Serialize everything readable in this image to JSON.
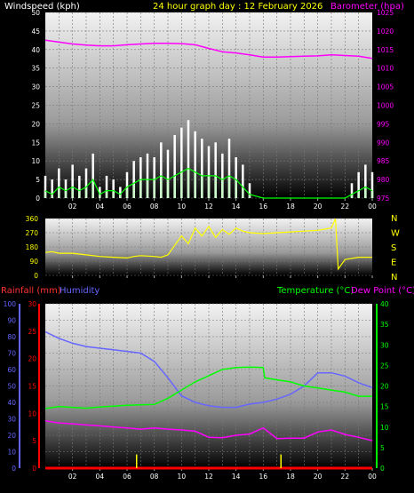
{
  "header": {
    "windspeed_label": "Windspeed (kph)",
    "title": "24 hour graph day : 12 February 2026",
    "barometer_label": "Barometer (hpa)"
  },
  "direction_letters": [
    "N",
    "W",
    "S",
    "E",
    "N"
  ],
  "bottom_header": {
    "rainfall_label": "Rainfall (mm)",
    "humidity_label": "Humidity",
    "temperature_label": "Temperature (°C)",
    "dewpoint_label": "Dew Point (°C)"
  },
  "colors": {
    "wind_gust": "#ffffff",
    "wind_avg": "#ccffcc",
    "wind_line": "#00ff00",
    "barometer": "#ff00ff",
    "direction": "#ffff00",
    "humidity": "#6666ff",
    "temperature": "#00ff00",
    "dewpoint": "#ff00ff",
    "rainfall": "#ff0000",
    "rain_rate": "#ffff00",
    "title": "#ffff00"
  },
  "chart_data": [
    {
      "type": "line",
      "name": "wind_barometer",
      "x_ticks": [
        "02",
        "04",
        "06",
        "08",
        "10",
        "12",
        "14",
        "16",
        "18",
        "20",
        "22",
        "00"
      ],
      "left_axis": {
        "ticks": [
          0,
          5,
          10,
          15,
          20,
          25,
          30,
          35,
          40,
          45,
          50
        ],
        "range": [
          0,
          50
        ]
      },
      "right_axis": {
        "ticks": [
          975,
          980,
          985,
          990,
          995,
          1000,
          1005,
          1010,
          1015,
          1020,
          1025
        ],
        "range": [
          975,
          1025
        ]
      },
      "series": [
        {
          "name": "Barometer",
          "axis": "right",
          "x": [
            0,
            1,
            2,
            3,
            4,
            5,
            6,
            7,
            8,
            9,
            10,
            11,
            12,
            13,
            14,
            15,
            16,
            17,
            18,
            19,
            20,
            21,
            22,
            23,
            24
          ],
          "values": [
            1017.5,
            1017,
            1016.5,
            1016.2,
            1016,
            1016,
            1016.3,
            1016.5,
            1016.7,
            1016.7,
            1016.6,
            1016.3,
            1015.3,
            1014.4,
            1014.1,
            1013.6,
            1013,
            1013,
            1013.1,
            1013.2,
            1013.3,
            1013.6,
            1013.4,
            1013.2,
            1012.6
          ]
        },
        {
          "name": "Wind gust",
          "axis": "left",
          "x": [
            0,
            0.5,
            1,
            1.5,
            2,
            2.5,
            3,
            3.5,
            4,
            4.5,
            5,
            5.5,
            6,
            6.5,
            7,
            7.5,
            8,
            8.5,
            9,
            9.5,
            10,
            10.5,
            11,
            11.5,
            12,
            12.5,
            13,
            13.5,
            14,
            14.5,
            15,
            16,
            17,
            18,
            19,
            20,
            21,
            21.5,
            22,
            22.5,
            23,
            23.5,
            24
          ],
          "values": [
            6,
            5,
            8,
            5,
            9,
            6,
            8,
            12,
            3,
            6,
            5,
            3,
            7,
            10,
            11,
            12,
            11,
            15,
            13,
            17,
            19,
            21,
            18,
            16,
            14,
            15,
            12,
            16,
            11,
            9,
            4,
            0,
            0,
            0,
            0,
            0,
            0,
            0,
            0,
            4,
            7,
            9,
            7
          ]
        },
        {
          "name": "Wind average",
          "axis": "left",
          "x": [
            0,
            0.5,
            1,
            1.5,
            2,
            2.5,
            3,
            3.5,
            4,
            4.5,
            5,
            5.5,
            6,
            6.5,
            7,
            7.5,
            8,
            8.5,
            9,
            9.5,
            10,
            10.5,
            11,
            11.5,
            12,
            12.5,
            13,
            13.5,
            14,
            14.5,
            15,
            16,
            17,
            18,
            19,
            20,
            21,
            21.5,
            22,
            22.5,
            23,
            23.5,
            24
          ],
          "values": [
            2,
            1,
            3,
            2,
            3,
            2,
            3,
            5,
            1,
            2,
            2,
            1,
            3,
            4,
            5,
            5,
            5,
            6,
            5,
            6,
            7,
            8,
            7,
            6,
            6,
            6,
            5,
            6,
            5,
            3,
            1,
            0,
            0,
            0,
            0,
            0,
            0,
            0,
            0,
            1,
            2,
            3,
            2
          ]
        }
      ]
    },
    {
      "type": "line",
      "name": "wind_direction",
      "x_ticks": [
        "02",
        "04",
        "06",
        "08",
        "10",
        "12",
        "14",
        "16",
        "18",
        "20",
        "22",
        "00"
      ],
      "left_axis": {
        "ticks": [
          0,
          90,
          180,
          270,
          360
        ],
        "range": [
          0,
          360
        ]
      },
      "series": [
        {
          "name": "Wind direction",
          "x": [
            0,
            0.5,
            1,
            2,
            3,
            4,
            5,
            6,
            6.5,
            7,
            8,
            8.5,
            9,
            9.5,
            10,
            10.5,
            11,
            11.5,
            12,
            12.5,
            13,
            13.5,
            14,
            14.5,
            15,
            16,
            17,
            18,
            19,
            20,
            21,
            21.3,
            21.5,
            22,
            23,
            24
          ],
          "values": [
            145,
            150,
            140,
            140,
            130,
            120,
            115,
            110,
            120,
            125,
            120,
            115,
            130,
            190,
            250,
            200,
            300,
            250,
            310,
            240,
            290,
            260,
            300,
            280,
            270,
            265,
            270,
            275,
            280,
            285,
            300,
            360,
            40,
            100,
            115,
            115
          ]
        }
      ]
    },
    {
      "type": "line",
      "name": "temperature_humidity_rain",
      "x_ticks": [
        "02",
        "04",
        "06",
        "08",
        "10",
        "12",
        "14",
        "16",
        "18",
        "20",
        "22",
        "00"
      ],
      "humidity_axis": {
        "ticks": [
          0,
          10,
          20,
          30,
          40,
          50,
          60,
          70,
          80,
          90,
          100
        ],
        "range": [
          0,
          100
        ]
      },
      "rainfall_axis": {
        "ticks": [
          0,
          5,
          10,
          15,
          20,
          25,
          30
        ],
        "range": [
          0,
          30
        ]
      },
      "temperature_axis": {
        "ticks": [
          0,
          5,
          10,
          15,
          20,
          25,
          30,
          35,
          40
        ],
        "range": [
          0,
          40
        ]
      },
      "series": [
        {
          "name": "Humidity",
          "axis": "humidity",
          "x": [
            0,
            1,
            2,
            3,
            4,
            5,
            6,
            7,
            8,
            9,
            10,
            11,
            12,
            13,
            14,
            15,
            16,
            17,
            18,
            19,
            20,
            21,
            22,
            23,
            24
          ],
          "values": [
            83,
            79,
            76,
            74,
            73,
            72,
            71,
            70,
            65,
            55,
            44,
            40,
            38,
            37,
            37,
            39,
            40,
            42,
            45,
            50,
            58,
            58,
            56,
            52,
            49
          ]
        },
        {
          "name": "Temperature",
          "axis": "temperature",
          "x": [
            0,
            1,
            2,
            3,
            4,
            5,
            6,
            7,
            8,
            9,
            10,
            11,
            12,
            13,
            14,
            15,
            16,
            16.1,
            17,
            18,
            19,
            20,
            21,
            22,
            23,
            24
          ],
          "values": [
            14.5,
            15,
            14.8,
            14.6,
            14.9,
            15.1,
            15.3,
            15.4,
            15.5,
            17,
            19,
            21,
            22.5,
            24,
            24.5,
            24.6,
            24.5,
            22,
            21.5,
            21,
            20,
            19.5,
            19,
            18.5,
            17.5,
            17.5
          ]
        },
        {
          "name": "Dew Point",
          "axis": "temperature",
          "x": [
            0,
            1,
            2,
            3,
            4,
            5,
            6,
            7,
            8,
            9,
            10,
            11,
            12,
            13,
            14,
            15,
            16,
            17,
            18,
            19,
            20,
            21,
            22,
            23,
            24
          ],
          "values": [
            11.5,
            11,
            10.8,
            10.5,
            10.3,
            10,
            9.8,
            9.5,
            9.8,
            9.5,
            9.3,
            9,
            7.5,
            7.4,
            8,
            8.3,
            9.8,
            7.2,
            7.3,
            7.3,
            8.8,
            9.3,
            8.2,
            7.5,
            6.7
          ]
        },
        {
          "name": "Rainfall",
          "axis": "rainfall",
          "x": [
            0,
            24
          ],
          "values": [
            0,
            0
          ]
        },
        {
          "name": "Rain rate",
          "axis": "rainfall",
          "x": [
            6.7,
            17.3
          ],
          "values": [
            2.5,
            2.5
          ]
        }
      ]
    }
  ]
}
